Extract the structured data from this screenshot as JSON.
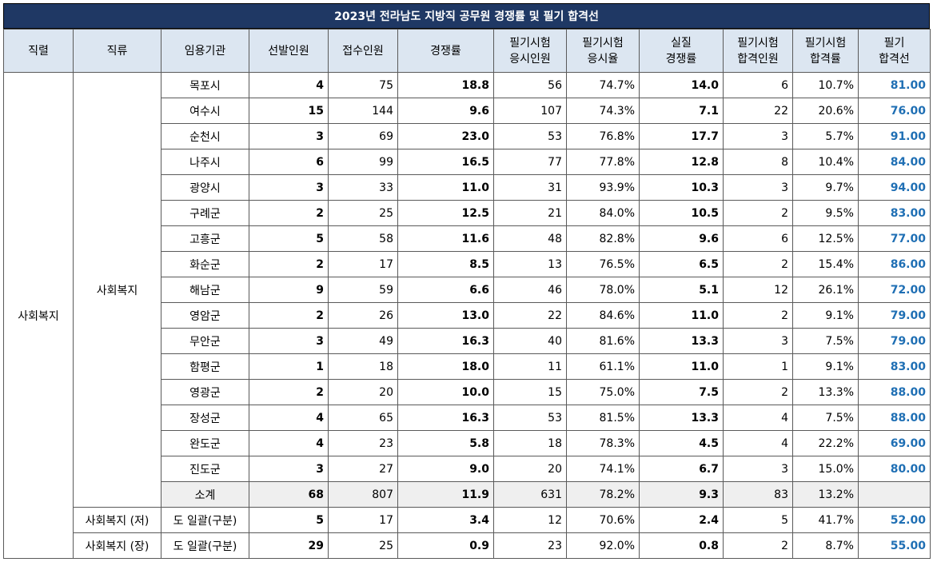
{
  "title": "2023년 전라남도 지방직 공무원 경쟁률 및 필기 합격선",
  "headers": [
    "직렬",
    "직류",
    "임용기관",
    "선발인원",
    "접수인원",
    "경쟁률",
    "필기시험\n응시인원",
    "필기시험\n응시율",
    "실질\n경쟁률",
    "필기시험\n합격인원",
    "필기시험\n합격률",
    "필기\n합격선"
  ],
  "series": "사회복지",
  "category_main": "사회복지",
  "rows": [
    {
      "agency": "목포시",
      "selected": "4",
      "applied": "75",
      "ratio": "18.8",
      "took": "56",
      "take_rate": "74.7%",
      "real_ratio": "14.0",
      "passed": "6",
      "pass_rate": "10.7%",
      "cutoff": "81.00"
    },
    {
      "agency": "여수시",
      "selected": "15",
      "applied": "144",
      "ratio": "9.6",
      "took": "107",
      "take_rate": "74.3%",
      "real_ratio": "7.1",
      "passed": "22",
      "pass_rate": "20.6%",
      "cutoff": "76.00"
    },
    {
      "agency": "순천시",
      "selected": "3",
      "applied": "69",
      "ratio": "23.0",
      "took": "53",
      "take_rate": "76.8%",
      "real_ratio": "17.7",
      "passed": "3",
      "pass_rate": "5.7%",
      "cutoff": "91.00"
    },
    {
      "agency": "나주시",
      "selected": "6",
      "applied": "99",
      "ratio": "16.5",
      "took": "77",
      "take_rate": "77.8%",
      "real_ratio": "12.8",
      "passed": "8",
      "pass_rate": "10.4%",
      "cutoff": "84.00"
    },
    {
      "agency": "광양시",
      "selected": "3",
      "applied": "33",
      "ratio": "11.0",
      "took": "31",
      "take_rate": "93.9%",
      "real_ratio": "10.3",
      "passed": "3",
      "pass_rate": "9.7%",
      "cutoff": "94.00"
    },
    {
      "agency": "구례군",
      "selected": "2",
      "applied": "25",
      "ratio": "12.5",
      "took": "21",
      "take_rate": "84.0%",
      "real_ratio": "10.5",
      "passed": "2",
      "pass_rate": "9.5%",
      "cutoff": "83.00"
    },
    {
      "agency": "고흥군",
      "selected": "5",
      "applied": "58",
      "ratio": "11.6",
      "took": "48",
      "take_rate": "82.8%",
      "real_ratio": "9.6",
      "passed": "6",
      "pass_rate": "12.5%",
      "cutoff": "77.00"
    },
    {
      "agency": "화순군",
      "selected": "2",
      "applied": "17",
      "ratio": "8.5",
      "took": "13",
      "take_rate": "76.5%",
      "real_ratio": "6.5",
      "passed": "2",
      "pass_rate": "15.4%",
      "cutoff": "86.00"
    },
    {
      "agency": "해남군",
      "selected": "9",
      "applied": "59",
      "ratio": "6.6",
      "took": "46",
      "take_rate": "78.0%",
      "real_ratio": "5.1",
      "passed": "12",
      "pass_rate": "26.1%",
      "cutoff": "72.00"
    },
    {
      "agency": "영암군",
      "selected": "2",
      "applied": "26",
      "ratio": "13.0",
      "took": "22",
      "take_rate": "84.6%",
      "real_ratio": "11.0",
      "passed": "2",
      "pass_rate": "9.1%",
      "cutoff": "79.00"
    },
    {
      "agency": "무안군",
      "selected": "3",
      "applied": "49",
      "ratio": "16.3",
      "took": "40",
      "take_rate": "81.6%",
      "real_ratio": "13.3",
      "passed": "3",
      "pass_rate": "7.5%",
      "cutoff": "79.00"
    },
    {
      "agency": "함평군",
      "selected": "1",
      "applied": "18",
      "ratio": "18.0",
      "took": "11",
      "take_rate": "61.1%",
      "real_ratio": "11.0",
      "passed": "1",
      "pass_rate": "9.1%",
      "cutoff": "83.00"
    },
    {
      "agency": "영광군",
      "selected": "2",
      "applied": "20",
      "ratio": "10.0",
      "took": "15",
      "take_rate": "75.0%",
      "real_ratio": "7.5",
      "passed": "2",
      "pass_rate": "13.3%",
      "cutoff": "88.00"
    },
    {
      "agency": "장성군",
      "selected": "4",
      "applied": "65",
      "ratio": "16.3",
      "took": "53",
      "take_rate": "81.5%",
      "real_ratio": "13.3",
      "passed": "4",
      "pass_rate": "7.5%",
      "cutoff": "88.00"
    },
    {
      "agency": "완도군",
      "selected": "4",
      "applied": "23",
      "ratio": "5.8",
      "took": "18",
      "take_rate": "78.3%",
      "real_ratio": "4.5",
      "passed": "4",
      "pass_rate": "22.2%",
      "cutoff": "69.00"
    },
    {
      "agency": "진도군",
      "selected": "3",
      "applied": "27",
      "ratio": "9.0",
      "took": "20",
      "take_rate": "74.1%",
      "real_ratio": "6.7",
      "passed": "3",
      "pass_rate": "15.0%",
      "cutoff": "80.00"
    }
  ],
  "subtotal": {
    "agency": "소계",
    "selected": "68",
    "applied": "807",
    "ratio": "11.9",
    "took": "631",
    "take_rate": "78.2%",
    "real_ratio": "9.3",
    "passed": "83",
    "pass_rate": "13.2%",
    "cutoff": ""
  },
  "extra_rows": [
    {
      "category": "사회복지 (저)",
      "agency": "도 일괄(구분)",
      "selected": "5",
      "applied": "17",
      "ratio": "3.4",
      "took": "12",
      "take_rate": "70.6%",
      "real_ratio": "2.4",
      "passed": "5",
      "pass_rate": "41.7%",
      "cutoff": "52.00"
    },
    {
      "category": "사회복지 (장)",
      "agency": "도 일괄(구분)",
      "selected": "29",
      "applied": "25",
      "ratio": "0.9",
      "took": "23",
      "take_rate": "92.0%",
      "real_ratio": "0.8",
      "passed": "2",
      "pass_rate": "8.7%",
      "cutoff": "55.00"
    }
  ],
  "colors": {
    "title_bg": "#1f3864",
    "header_bg": "#dce6f1",
    "cutoff_text": "#1f6fb4",
    "subtotal_bg": "#efefef"
  }
}
